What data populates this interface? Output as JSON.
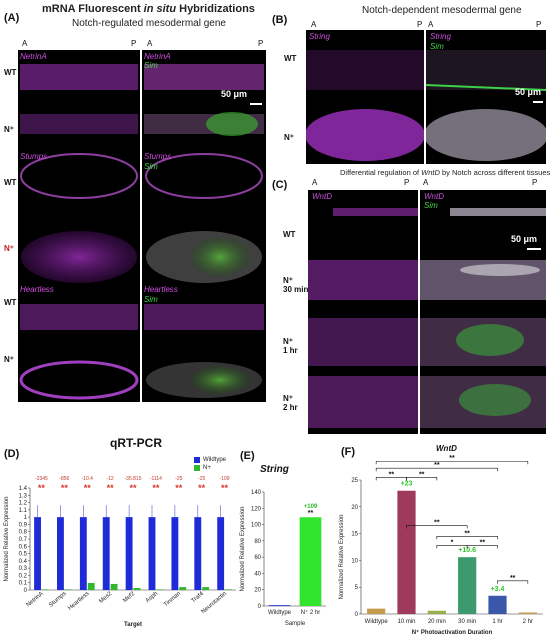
{
  "panelA": {
    "letter": "(A)",
    "title_part1": "mRNA Fluorescent ",
    "title_italic": "in situ",
    "title_part2": " Hybridizations",
    "subtitle": "Notch-regulated mesodermal gene",
    "a_label": "A",
    "p_label": "P",
    "rows": [
      "WT",
      "N⁺",
      "WT",
      "N⁺",
      "WT",
      "N⁺"
    ],
    "genes_left": [
      "NetrinA",
      "Stumps",
      "Heartless"
    ],
    "genes_right": [
      "NetrinA",
      "Stumps",
      "Heartless"
    ],
    "sim": "Sim",
    "scale": "50 μm"
  },
  "panelB": {
    "letter": "(B)",
    "title": "Notch-dependent mesodermal gene",
    "a_label": "A",
    "p_label": "P",
    "rows": [
      "WT",
      "N⁺"
    ],
    "gene": "String",
    "sim": "Sim",
    "scale": "50 μm"
  },
  "panelC": {
    "letter": "(C)",
    "title_part1": "Differential regulation of ",
    "title_italic": "WntD",
    "title_part2": " by Notch across different tissues",
    "a_label": "A",
    "p_label": "P",
    "rows": [
      "WT",
      "N⁺\n30 min",
      "N⁺\n1 hr",
      "N⁺\n2 hr"
    ],
    "gene": "WntD",
    "sim": "Sim",
    "scale": "50 μm"
  },
  "panelD": {
    "letter": "(D)",
    "title": "qRT-PCR",
    "legend": [
      {
        "name": "Wildtype",
        "color": "#1f2bd6"
      },
      {
        "name": "N+",
        "color": "#31b82e"
      }
    ]
  },
  "panelE": {
    "letter": "(E)",
    "title": "String"
  },
  "panelF": {
    "letter": "(F)",
    "title": "WntD"
  },
  "chart_data": [
    {
      "type": "bar",
      "panel": "D",
      "title": "qRT-PCR",
      "xlabel": "Target",
      "ylabel": "Normalized Relative Expression",
      "ylim": [
        0,
        1.4
      ],
      "yticks": [
        "0",
        "0.1",
        "0.2",
        "0.3",
        "0.4",
        "0.5",
        "0.6",
        "0.7",
        "0.8",
        "0.9",
        "1",
        "1.1",
        "1.2",
        "1.3",
        "1.4"
      ],
      "categories": [
        "NetrinA",
        "Stumps",
        "Heartless",
        "Mes2",
        "Mef2",
        "Asph",
        "Tinman",
        "Traf4",
        "Neurotactin"
      ],
      "series": [
        {
          "name": "Wildtype",
          "color": "#1f2bd6",
          "values": [
            1,
            1,
            1,
            1,
            1,
            1,
            1,
            1,
            1
          ]
        },
        {
          "name": "N+",
          "color": "#31b82e",
          "values": [
            0.0004,
            0.0012,
            0.096,
            0.083,
            0.028,
            0.0009,
            0.04,
            0.04,
            0.009
          ]
        }
      ],
      "fold_labels": [
        "-2345",
        "-856",
        "-10.4",
        "-12",
        "-35.815",
        "-1114",
        "-25",
        "-25",
        "-109"
      ],
      "significance": [
        "**",
        "**",
        "**",
        "**",
        "**",
        "**",
        "**",
        "**",
        "**"
      ]
    },
    {
      "type": "bar",
      "panel": "E",
      "title": "String",
      "xlabel": "Sample",
      "ylabel": "Normalized Relative Expression",
      "ylim": [
        0,
        140
      ],
      "yticks": [
        "0",
        "20",
        "40",
        "60",
        "80",
        "100",
        "120",
        "140"
      ],
      "categories": [
        "Wildtype",
        "N⁺ 2 hr"
      ],
      "values": [
        1,
        109
      ],
      "colors": [
        "#1f2bd6",
        "#31e52c"
      ],
      "annotations": [
        "",
        "+109"
      ],
      "significance": [
        "",
        "**"
      ]
    },
    {
      "type": "bar",
      "panel": "F",
      "title": "WntD",
      "xlabel": "N⁺ Photoactivation Duration",
      "ylabel": "Normalized Relative Expression",
      "ylim": [
        0,
        25
      ],
      "yticks": [
        "0",
        "5",
        "10",
        "15",
        "20",
        "25"
      ],
      "categories": [
        "Wildtype",
        "10 min",
        "20 min",
        "30 min",
        "1 hr",
        "2 hr"
      ],
      "values": [
        1,
        23,
        0.6,
        10.6,
        3.4,
        0.3
      ],
      "colors": [
        "#c79b4e",
        "#a03a5d",
        "#96b04a",
        "#3c9a6e",
        "#3b57a9",
        "#c9a25b"
      ],
      "annotations": [
        "",
        "+23",
        "",
        "+10.6",
        "+3.4",
        ""
      ],
      "significance_brackets": [
        "**",
        "**",
        "**",
        "**",
        "**",
        "*",
        "**",
        "**",
        "**"
      ]
    }
  ]
}
